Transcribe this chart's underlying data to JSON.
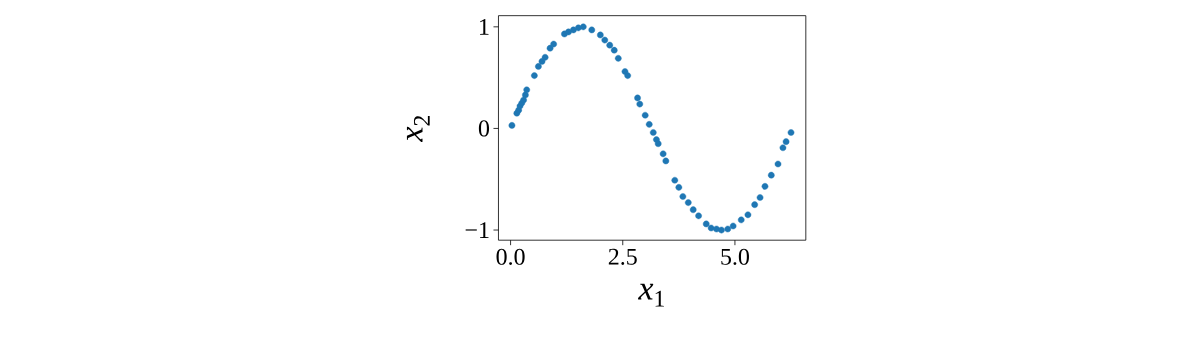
{
  "chart_data": {
    "type": "scatter",
    "xlabel": "*x*$_{1}$",
    "ylabel": "*x*$_{2}$",
    "color": "#1f77b4",
    "grid": false,
    "xlim": [
      -0.27,
      6.58
    ],
    "ylim": [
      -1.1,
      1.11
    ],
    "xticks": [
      {
        "value": 0,
        "label": "0.0"
      },
      {
        "value": 2.5,
        "label": "2.5"
      },
      {
        "value": 5,
        "label": "5.0"
      }
    ],
    "yticks": [
      {
        "value": -1,
        "label": "−1"
      },
      {
        "value": 0,
        "label": "0"
      },
      {
        "value": 1,
        "label": "1"
      }
    ],
    "x": [
      0.03,
      0.14,
      0.18,
      0.21,
      0.25,
      0.29,
      0.33,
      0.36,
      0.53,
      0.62,
      0.7,
      0.77,
      0.88,
      0.96,
      1.2,
      1.29,
      1.4,
      1.51,
      1.62,
      1.81,
      2.0,
      2.1,
      2.21,
      2.31,
      2.4,
      2.55,
      2.61,
      2.83,
      2.88,
      3.0,
      3.09,
      3.18,
      3.25,
      3.29,
      3.4,
      3.46,
      3.66,
      3.75,
      3.84,
      3.96,
      4.07,
      4.19,
      4.36,
      4.47,
      4.59,
      4.7,
      4.84,
      4.96,
      5.14,
      5.29,
      5.44,
      5.56,
      5.67,
      5.81,
      5.96,
      6.07,
      6.14,
      6.25
    ],
    "values": [
      0.03,
      0.15,
      0.18,
      0.22,
      0.25,
      0.28,
      0.33,
      0.38,
      0.52,
      0.61,
      0.66,
      0.7,
      0.79,
      0.83,
      0.93,
      0.95,
      0.97,
      0.99,
      1.0,
      0.97,
      0.92,
      0.87,
      0.82,
      0.77,
      0.69,
      0.56,
      0.52,
      0.3,
      0.24,
      0.13,
      0.04,
      -0.04,
      -0.11,
      -0.15,
      -0.25,
      -0.32,
      -0.51,
      -0.58,
      -0.67,
      -0.73,
      -0.8,
      -0.86,
      -0.94,
      -0.98,
      -0.99,
      -1.0,
      -0.99,
      -0.96,
      -0.9,
      -0.85,
      -0.75,
      -0.68,
      -0.57,
      -0.46,
      -0.35,
      -0.19,
      -0.13,
      -0.04
    ]
  }
}
